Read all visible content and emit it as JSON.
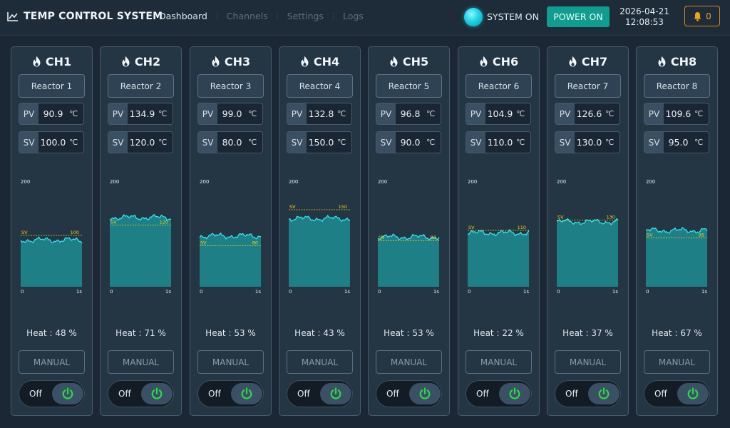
{
  "app": {
    "title": "TEMP CONTROL SYSTEM"
  },
  "nav": {
    "tabs": [
      {
        "label": "Dashboard",
        "active": true
      },
      {
        "label": "Channels",
        "active": false
      },
      {
        "label": "Settings",
        "active": false
      },
      {
        "label": "Logs",
        "active": false
      }
    ]
  },
  "status": {
    "system_label": "SYSTEM ON",
    "power_label": "POWER ON",
    "date": "2026-04-21",
    "time": "12:08:53",
    "alarm_count": "0"
  },
  "colors": {
    "accent_teal": "#109c8e",
    "led_cyan": "#1bd3e6",
    "alarm_orange": "#f0a21d",
    "power_green": "#2bd94a",
    "trend_line": "#2ee6f0",
    "trend_fill": "#1f7f86",
    "sv_line": "#f2d21b"
  },
  "labels": {
    "pv": "PV",
    "sv": "SV",
    "unit": "℃",
    "chart_ymax": "200",
    "chart_xmin": "0",
    "chart_xmax": "1s",
    "sv_tag": "SV",
    "heat_prefix": "Heat : ",
    "heat_suffix": " %",
    "manual": "MANUAL",
    "off": "Off"
  },
  "icons": {
    "header": "chart-line-icon",
    "channel": "flame-icon",
    "alarm": "bell-icon",
    "power": "power-icon"
  },
  "channels": [
    {
      "name": "CH1",
      "reactor": "Reactor 1",
      "pv": "90.9",
      "sv": "100.0",
      "sv_short": "100",
      "heat": "48",
      "level": 90.9,
      "setpoint": 100,
      "ymax": 200
    },
    {
      "name": "CH2",
      "reactor": "Reactor 2",
      "pv": "134.9",
      "sv": "120.0",
      "sv_short": "120",
      "heat": "71",
      "level": 134.9,
      "setpoint": 120,
      "ymax": 200
    },
    {
      "name": "CH3",
      "reactor": "Reactor 3",
      "pv": "99.0",
      "sv": "80.0",
      "sv_short": "80",
      "heat": "53",
      "level": 99.0,
      "setpoint": 80,
      "ymax": 200
    },
    {
      "name": "CH4",
      "reactor": "Reactor 4",
      "pv": "132.8",
      "sv": "150.0",
      "sv_short": "150",
      "heat": "43",
      "level": 132.8,
      "setpoint": 150,
      "ymax": 200
    },
    {
      "name": "CH5",
      "reactor": "Reactor 5",
      "pv": "96.8",
      "sv": "90.0",
      "sv_short": "90",
      "heat": "53",
      "level": 96.8,
      "setpoint": 90,
      "ymax": 200
    },
    {
      "name": "CH6",
      "reactor": "Reactor 6",
      "pv": "104.9",
      "sv": "110.0",
      "sv_short": "110",
      "heat": "22",
      "level": 104.9,
      "setpoint": 110,
      "ymax": 200
    },
    {
      "name": "CH7",
      "reactor": "Reactor 7",
      "pv": "126.6",
      "sv": "130.0",
      "sv_short": "130",
      "heat": "37",
      "level": 126.6,
      "setpoint": 130,
      "ymax": 200
    },
    {
      "name": "CH8",
      "reactor": "Reactor 8",
      "pv": "109.6",
      "sv": "95.0",
      "sv_short": "95",
      "heat": "67",
      "level": 109.6,
      "setpoint": 95,
      "ymax": 200
    }
  ]
}
